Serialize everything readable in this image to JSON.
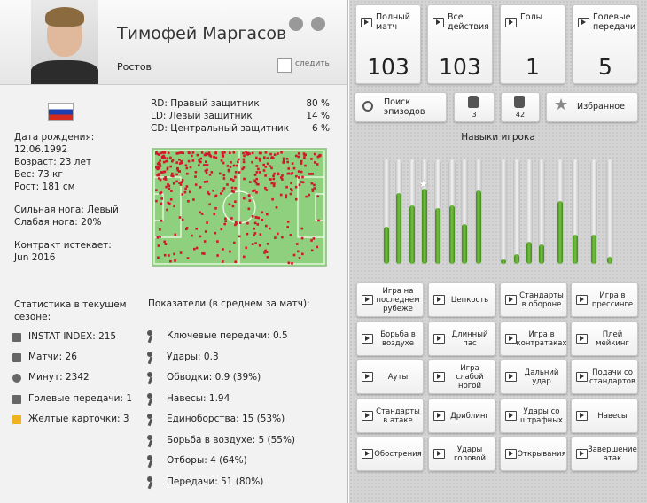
{
  "header": {
    "name": "Тимофей Маргасов",
    "club": "Ростов",
    "follow": "следить"
  },
  "profile": {
    "lines": [
      "Дата рождения:",
      "12.06.1992",
      "Возраст: 23 лет",
      "Вес: 73 кг",
      "Рост: 181 см"
    ],
    "foot": [
      "Сильная нога: Левый",
      "Слабая нога: 20%"
    ],
    "contract": [
      "Контракт истекает:",
      "Jun 2016"
    ]
  },
  "positions": [
    {
      "label": "RD: Правый защитник",
      "share": "80 %"
    },
    {
      "label": "LD: Левый защитник",
      "share": "14 %"
    },
    {
      "label": "CD: Центральный защитник",
      "share": "6 %"
    }
  ],
  "season": {
    "title": "Статистика в текущем сезоне:",
    "items": [
      "INSTAT INDEX: 215",
      "Матчи: 26",
      "Минут: 2342",
      "Голевые передачи: 1",
      "Желтые карточки: 3"
    ]
  },
  "per_match": {
    "title": "Показатели (в среднем за матч):",
    "items": [
      "Ключевые передачи: 0.5",
      "Удары: 0.3",
      "Обводки: 0.9 (39%)",
      "Навесы: 1.94",
      "Единоборства: 15 (53%)",
      "Борьба в воздухе: 5 (55%)",
      "Отборы: 4 (64%)",
      "Передачи: 51 (80%)"
    ]
  },
  "tiles": [
    {
      "label": "Полный матч",
      "value": 103
    },
    {
      "label": "Все действия",
      "value": 103
    },
    {
      "label": "Голы",
      "value": 1
    },
    {
      "label": "Голевые передачи",
      "value": 5
    }
  ],
  "tools": {
    "search": "Поиск эпизодов",
    "likes": 3,
    "dislikes": 42,
    "favorites": "Избранное"
  },
  "skills": {
    "title": "Навыки игрока",
    "groups": [
      [
        36,
        68,
        56,
        72,
        53,
        56,
        38,
        70
      ],
      [
        4,
        9,
        21,
        19
      ],
      [
        60,
        28
      ],
      [
        28,
        7
      ]
    ]
  },
  "skill_buttons": [
    "Игра на последнем рубеже",
    "Цепкость",
    "Стандарты в обороне",
    "Игра в прессинге",
    "Борьба в воздухе",
    "Длинный пас",
    "Игра в контратаках",
    "Плей мейкинг",
    "Ауты",
    "Игра слабой ногой",
    "Дальний удар",
    "Подачи со стандартов",
    "Стандарты в атаке",
    "Дриблинг",
    "Удары со штрафных",
    "Навесы",
    "Обострения",
    "Удары головой",
    "Открывания",
    "Завершение атак"
  ]
}
